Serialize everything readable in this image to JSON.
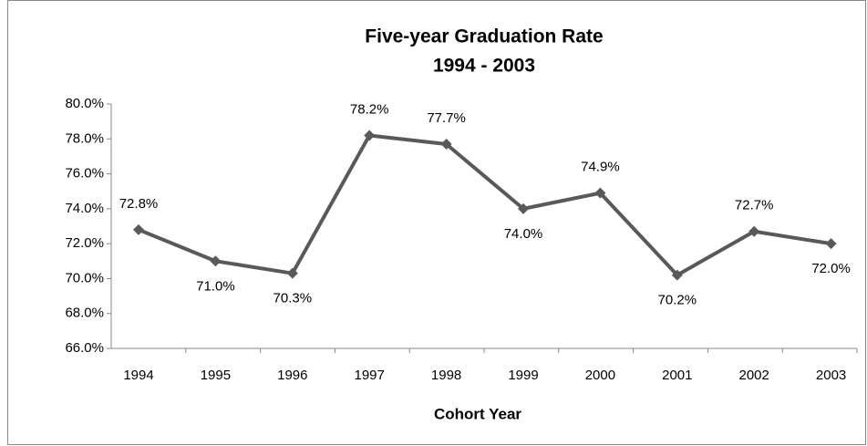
{
  "chart_data": {
    "type": "line",
    "title": "Five-year Graduation Rate",
    "subtitle": "1994 - 2003",
    "x_label": "Cohort Year",
    "categories": [
      "1994",
      "1995",
      "1996",
      "1997",
      "1998",
      "1999",
      "2000",
      "2001",
      "2002",
      "2003"
    ],
    "series": [
      {
        "name": "Five-year Graduation Rate",
        "color": "#595959",
        "values": [
          72.8,
          71.0,
          70.3,
          78.2,
          77.7,
          74.0,
          74.9,
          70.2,
          72.7,
          72.0
        ],
        "value_labels": [
          "72.8%",
          "71.0%",
          "70.3%",
          "78.2%",
          "77.7%",
          "74.0%",
          "74.9%",
          "70.2%",
          "72.7%",
          "72.0%"
        ]
      }
    ],
    "ylim": [
      66,
      80
    ],
    "yticks": [
      {
        "value": 66,
        "label": "66.0%"
      },
      {
        "value": 68,
        "label": "68.0%"
      },
      {
        "value": 70,
        "label": "70.0%"
      },
      {
        "value": 72,
        "label": "72.0%"
      },
      {
        "value": 74,
        "label": "74.0%"
      },
      {
        "value": 76,
        "label": "76.0%"
      },
      {
        "value": 78,
        "label": "78.0%"
      },
      {
        "value": 80,
        "label": "80.0%"
      }
    ],
    "grid": false
  }
}
